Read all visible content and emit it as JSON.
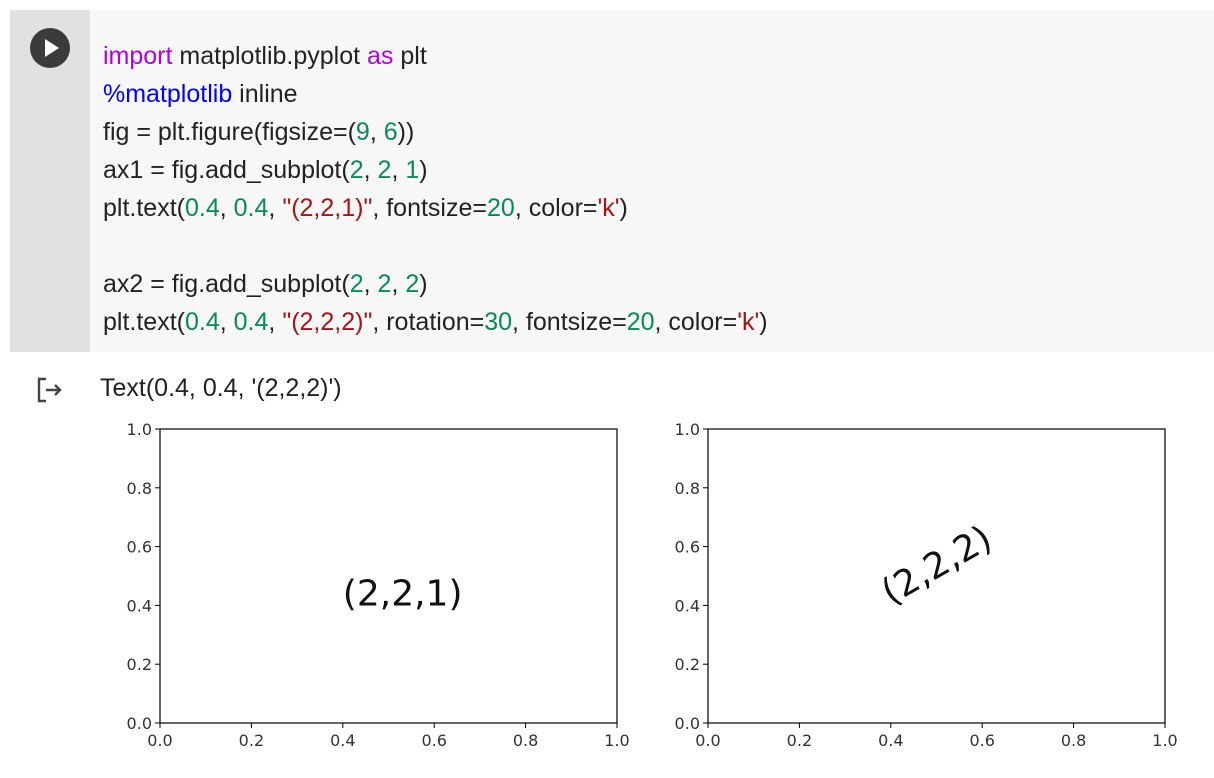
{
  "cell": {
    "run_button": "play-icon",
    "code_lines": [
      [
        {
          "t": "import",
          "c": "kw"
        },
        {
          "t": " matplotlib.pyplot "
        },
        {
          "t": "as",
          "c": "kw"
        },
        {
          "t": " plt"
        }
      ],
      [
        {
          "t": "%matplotlib",
          "c": "mg"
        },
        {
          "t": " inline"
        }
      ],
      [
        {
          "t": "fig = plt.figure(figsize=("
        },
        {
          "t": "9",
          "c": "num"
        },
        {
          "t": ", "
        },
        {
          "t": "6",
          "c": "num"
        },
        {
          "t": "))"
        }
      ],
      [
        {
          "t": "ax1 = fig.add_subplot("
        },
        {
          "t": "2",
          "c": "num"
        },
        {
          "t": ", "
        },
        {
          "t": "2",
          "c": "num"
        },
        {
          "t": ", "
        },
        {
          "t": "1",
          "c": "num"
        },
        {
          "t": ")"
        }
      ],
      [
        {
          "t": "plt.text("
        },
        {
          "t": "0.4",
          "c": "num"
        },
        {
          "t": ", "
        },
        {
          "t": "0.4",
          "c": "num"
        },
        {
          "t": ", "
        },
        {
          "t": "\"(2,2,1)\"",
          "c": "str"
        },
        {
          "t": ", fontsize="
        },
        {
          "t": "20",
          "c": "num"
        },
        {
          "t": ", color="
        },
        {
          "t": "'k'",
          "c": "str"
        },
        {
          "t": ")"
        }
      ],
      [],
      [
        {
          "t": "ax2 = fig.add_subplot("
        },
        {
          "t": "2",
          "c": "num"
        },
        {
          "t": ", "
        },
        {
          "t": "2",
          "c": "num"
        },
        {
          "t": ", "
        },
        {
          "t": "2",
          "c": "num"
        },
        {
          "t": ")"
        }
      ],
      [
        {
          "t": "plt.text("
        },
        {
          "t": "0.4",
          "c": "num"
        },
        {
          "t": ", "
        },
        {
          "t": "0.4",
          "c": "num"
        },
        {
          "t": ", "
        },
        {
          "t": "\"(2,2,2)\"",
          "c": "str"
        },
        {
          "t": ", rotation="
        },
        {
          "t": "30",
          "c": "num"
        },
        {
          "t": ", fontsize="
        },
        {
          "t": "20",
          "c": "num"
        },
        {
          "t": ", color="
        },
        {
          "t": "'k'",
          "c": "str"
        },
        {
          "t": ")"
        }
      ]
    ]
  },
  "output": {
    "icon": "output-arrow-icon",
    "text": "Text(0.4, 0.4, '(2,2,2)')"
  },
  "chart_data": [
    {
      "type": "scatter",
      "xlim": [
        0.0,
        1.0
      ],
      "ylim": [
        0.0,
        1.0
      ],
      "xticks": [
        "0.0",
        "0.2",
        "0.4",
        "0.6",
        "0.8",
        "1.0"
      ],
      "yticks": [
        "0.0",
        "0.2",
        "0.4",
        "0.6",
        "0.8",
        "1.0"
      ],
      "grid": false,
      "annotations": [
        {
          "text": "(2,2,1)",
          "x": 0.4,
          "y": 0.4,
          "rotation": 0
        }
      ]
    },
    {
      "type": "scatter",
      "xlim": [
        0.0,
        1.0
      ],
      "ylim": [
        0.0,
        1.0
      ],
      "xticks": [
        "0.0",
        "0.2",
        "0.4",
        "0.6",
        "0.8",
        "1.0"
      ],
      "yticks": [
        "0.0",
        "0.2",
        "0.4",
        "0.6",
        "0.8",
        "1.0"
      ],
      "grid": false,
      "annotations": [
        {
          "text": "(2,2,2)",
          "x": 0.4,
          "y": 0.4,
          "rotation": 30
        }
      ]
    }
  ]
}
